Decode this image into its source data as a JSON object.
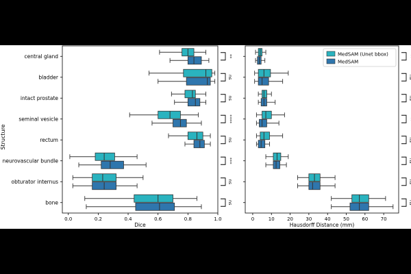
{
  "colors": {
    "background_bar": "#000000",
    "figure": "#ffffff",
    "medsam_unet": "#2ab3bf",
    "medsam": "#2f76ad",
    "box_edge": "#333333"
  },
  "y_axis_label": "Structure",
  "structures": [
    "central gland",
    "bladder",
    "intact prostate",
    "seminal vesicle",
    "rectum",
    "neurovascular bundle",
    "obturator internus",
    "bone"
  ],
  "legend": {
    "placement": "top-right of right panel",
    "entries": [
      {
        "label": "MedSAM (Unet bbox)",
        "color": "#2ab3bf"
      },
      {
        "label": "MedSAM",
        "color": "#2f76ad"
      }
    ]
  },
  "chart_data": [
    {
      "type": "boxplot",
      "orientation": "horizontal",
      "xlabel": "Dice",
      "xlim": [
        -0.04,
        1.0
      ],
      "xticks": [
        "0.0",
        "0.2",
        "0.4",
        "0.6",
        "0.8",
        "1.0"
      ],
      "categories": [
        "central gland",
        "bladder",
        "intact prostate",
        "seminal vesicle",
        "rectum",
        "neurovascular bundle",
        "obturator internus",
        "bone"
      ],
      "series": [
        {
          "name": "MedSAM (Unet bbox)",
          "boxes": [
            {
              "whislo": 0.61,
              "q1": 0.76,
              "med": 0.8,
              "q3": 0.84,
              "whishi": 0.92
            },
            {
              "whislo": 0.54,
              "q1": 0.77,
              "med": 0.92,
              "q3": 0.96,
              "whishi": 0.98
            },
            {
              "whislo": 0.69,
              "q1": 0.78,
              "med": 0.83,
              "q3": 0.85,
              "whishi": 0.92
            },
            {
              "whislo": 0.41,
              "q1": 0.6,
              "med": 0.68,
              "q3": 0.75,
              "whishi": 0.87
            },
            {
              "whislo": 0.67,
              "q1": 0.8,
              "med": 0.86,
              "q3": 0.9,
              "whishi": 0.95
            },
            {
              "whislo": 0.01,
              "q1": 0.18,
              "med": 0.24,
              "q3": 0.31,
              "whishi": 0.46
            },
            {
              "whislo": 0.03,
              "q1": 0.16,
              "med": 0.23,
              "q3": 0.32,
              "whishi": 0.5
            },
            {
              "whislo": 0.11,
              "q1": 0.44,
              "med": 0.6,
              "q3": 0.7,
              "whishi": 0.86
            }
          ]
        },
        {
          "name": "MedSAM",
          "boxes": [
            {
              "whislo": 0.68,
              "q1": 0.8,
              "med": 0.84,
              "q3": 0.89,
              "whishi": 0.94
            },
            {
              "whislo": 0.6,
              "q1": 0.79,
              "med": 0.93,
              "q3": 0.95,
              "whishi": 0.98
            },
            {
              "whislo": 0.71,
              "q1": 0.8,
              "med": 0.85,
              "q3": 0.88,
              "whishi": 0.92
            },
            {
              "whislo": 0.56,
              "q1": 0.7,
              "med": 0.75,
              "q3": 0.79,
              "whishi": 0.89
            },
            {
              "whislo": 0.78,
              "q1": 0.84,
              "med": 0.88,
              "q3": 0.91,
              "whishi": 0.95
            },
            {
              "whislo": 0.07,
              "q1": 0.22,
              "med": 0.28,
              "q3": 0.37,
              "whishi": 0.52
            },
            {
              "whislo": 0.03,
              "q1": 0.16,
              "med": 0.24,
              "q3": 0.32,
              "whishi": 0.46
            },
            {
              "whislo": 0.12,
              "q1": 0.45,
              "med": 0.61,
              "q3": 0.71,
              "whishi": 0.89
            }
          ]
        }
      ],
      "significance": [
        "**",
        "ns",
        "ns",
        "****",
        "ns",
        "***",
        "ns",
        "ns"
      ]
    },
    {
      "type": "boxplot",
      "orientation": "horizontal",
      "xlabel": "Hausdorff Distance (mm)",
      "xlim": [
        -4,
        78
      ],
      "xticks": [
        "0",
        "10",
        "20",
        "30",
        "40",
        "50",
        "60",
        "70"
      ],
      "categories": [
        "central gland",
        "bladder",
        "intact prostate",
        "seminal vesicle",
        "rectum",
        "neurovascular bundle",
        "obturator internus",
        "bone"
      ],
      "series": [
        {
          "name": "MedSAM (Unet bbox)",
          "boxes": [
            {
              "whislo": 1.5,
              "q1": 3.0,
              "med": 4.0,
              "q3": 5.0,
              "whishi": 7.0
            },
            {
              "whislo": 1.0,
              "q1": 3.0,
              "med": 6.0,
              "q3": 9.5,
              "whishi": 19.0
            },
            {
              "whislo": 3.0,
              "q1": 5.0,
              "med": 6.0,
              "q3": 7.5,
              "whishi": 10.0
            },
            {
              "whislo": 2.0,
              "q1": 5.0,
              "med": 7.0,
              "q3": 10.0,
              "whishi": 17.0
            },
            {
              "whislo": 2.0,
              "q1": 4.0,
              "med": 6.0,
              "q3": 9.0,
              "whishi": 16.0
            },
            {
              "whislo": 7.0,
              "q1": 11.0,
              "med": 13.0,
              "q3": 15.0,
              "whishi": 19.0
            },
            {
              "whislo": 24.0,
              "q1": 30.0,
              "med": 33.0,
              "q3": 36.0,
              "whishi": 44.0
            },
            {
              "whislo": 42.0,
              "q1": 53.0,
              "med": 57.0,
              "q3": 62.0,
              "whishi": 71.0
            }
          ]
        },
        {
          "name": "MedSAM",
          "boxes": [
            {
              "whislo": 1.5,
              "q1": 2.5,
              "med": 3.5,
              "q3": 4.5,
              "whishi": 6.5
            },
            {
              "whislo": 1.0,
              "q1": 3.0,
              "med": 5.0,
              "q3": 8.5,
              "whishi": 16.0
            },
            {
              "whislo": 3.0,
              "q1": 4.5,
              "med": 6.0,
              "q3": 7.5,
              "whishi": 12.0
            },
            {
              "whislo": 2.0,
              "q1": 3.5,
              "med": 5.0,
              "q3": 7.5,
              "whishi": 14.0
            },
            {
              "whislo": 2.0,
              "q1": 3.0,
              "med": 4.5,
              "q3": 6.5,
              "whishi": 9.0
            },
            {
              "whislo": 7.0,
              "q1": 11.0,
              "med": 12.5,
              "q3": 14.5,
              "whishi": 18.0
            },
            {
              "whislo": 24.0,
              "q1": 30.0,
              "med": 32.0,
              "q3": 36.0,
              "whishi": 44.0
            },
            {
              "whislo": 42.0,
              "q1": 52.0,
              "med": 57.0,
              "q3": 62.0,
              "whishi": 75.0
            }
          ]
        }
      ],
      "significance": [
        "**",
        "ns",
        "ns",
        "**",
        "ns",
        "ns",
        "ns",
        "ns"
      ]
    }
  ]
}
